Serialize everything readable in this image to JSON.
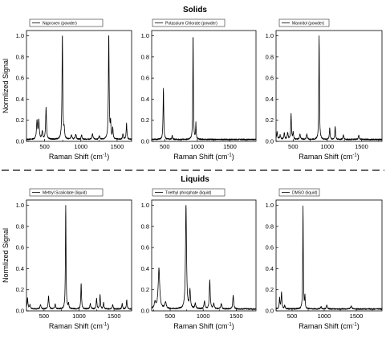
{
  "sections": {
    "solids_title": "Solids",
    "liquids_title": "Liquids"
  },
  "colors": {
    "line": "#000000",
    "divider": "#333333"
  },
  "chart_data": [
    {
      "type": "line",
      "group": "Solids",
      "legend": "Naproxen (powder)",
      "xlabel": "Raman Shift (cm-1)",
      "ylabel": "Normlized Signal",
      "xlim": [
        250,
        1700
      ],
      "ylim": [
        0,
        1.05
      ],
      "xticks": [
        500,
        1000,
        1500
      ],
      "yticks": [
        0.0,
        0.2,
        0.4,
        0.6,
        0.8,
        1.0
      ],
      "peaks": [
        {
          "x": 395,
          "y": 0.17,
          "w": 8
        },
        {
          "x": 420,
          "y": 0.17,
          "w": 8
        },
        {
          "x": 468,
          "y": 0.07,
          "w": 8
        },
        {
          "x": 520,
          "y": 0.3,
          "w": 7
        },
        {
          "x": 745,
          "y": 1.0,
          "w": 6
        },
        {
          "x": 770,
          "y": 0.08,
          "w": 6
        },
        {
          "x": 870,
          "y": 0.04,
          "w": 8
        },
        {
          "x": 930,
          "y": 0.05,
          "w": 8
        },
        {
          "x": 1010,
          "y": 0.04,
          "w": 8
        },
        {
          "x": 1160,
          "y": 0.05,
          "w": 8
        },
        {
          "x": 1255,
          "y": 0.03,
          "w": 8
        },
        {
          "x": 1385,
          "y": 1.0,
          "w": 6
        },
        {
          "x": 1410,
          "y": 0.14,
          "w": 6
        },
        {
          "x": 1440,
          "y": 0.1,
          "w": 6
        },
        {
          "x": 1580,
          "y": 0.05,
          "w": 7
        },
        {
          "x": 1630,
          "y": 0.15,
          "w": 6
        }
      ]
    },
    {
      "type": "line",
      "group": "Solids",
      "legend": "Potassium Chlorate (powder)",
      "xlabel": "Raman Shift (cm-1)",
      "ylabel": "",
      "xlim": [
        300,
        1900
      ],
      "ylim": [
        0,
        1.05
      ],
      "xticks": [
        500,
        1000,
        1500
      ],
      "yticks": [
        0.0,
        0.2,
        0.4,
        0.6,
        0.8,
        1.0
      ],
      "peaks": [
        {
          "x": 480,
          "y": 0.49,
          "w": 6
        },
        {
          "x": 615,
          "y": 0.04,
          "w": 6
        },
        {
          "x": 935,
          "y": 1.0,
          "w": 5
        },
        {
          "x": 978,
          "y": 0.15,
          "w": 5
        }
      ]
    },
    {
      "type": "line",
      "group": "Solids",
      "legend": "Mannitol (powder)",
      "xlabel": "Raman Shift (cm-1)",
      "ylabel": "",
      "xlim": [
        250,
        1800
      ],
      "ylim": [
        0,
        1.05
      ],
      "xticks": [
        500,
        1000,
        1500
      ],
      "yticks": [
        0.0,
        0.2,
        0.4,
        0.6,
        0.8,
        1.0
      ],
      "peaks": [
        {
          "x": 265,
          "y": 0.07,
          "w": 8
        },
        {
          "x": 310,
          "y": 0.04,
          "w": 8
        },
        {
          "x": 370,
          "y": 0.06,
          "w": 8
        },
        {
          "x": 420,
          "y": 0.06,
          "w": 8
        },
        {
          "x": 470,
          "y": 0.24,
          "w": 6
        },
        {
          "x": 500,
          "y": 0.07,
          "w": 6
        },
        {
          "x": 600,
          "y": 0.05,
          "w": 8
        },
        {
          "x": 700,
          "y": 0.05,
          "w": 8
        },
        {
          "x": 880,
          "y": 1.0,
          "w": 5
        },
        {
          "x": 1035,
          "y": 0.11,
          "w": 6
        },
        {
          "x": 1115,
          "y": 0.12,
          "w": 6
        },
        {
          "x": 1235,
          "y": 0.04,
          "w": 8
        },
        {
          "x": 1460,
          "y": 0.04,
          "w": 8
        }
      ]
    },
    {
      "type": "line",
      "group": "Liquids",
      "legend": "Methyl Scalicilate (liquid)",
      "xlabel": "Raman Shift (cm-1)",
      "ylabel": "Normlized Signal",
      "xlim": [
        250,
        1750
      ],
      "ylim": [
        0,
        1.05
      ],
      "xticks": [
        500,
        1000,
        1500
      ],
      "yticks": [
        0.0,
        0.2,
        0.4,
        0.6,
        0.8,
        1.0
      ],
      "peaks": [
        {
          "x": 265,
          "y": 0.1,
          "w": 7
        },
        {
          "x": 300,
          "y": 0.04,
          "w": 8
        },
        {
          "x": 450,
          "y": 0.04,
          "w": 8
        },
        {
          "x": 565,
          "y": 0.12,
          "w": 7
        },
        {
          "x": 660,
          "y": 0.05,
          "w": 7
        },
        {
          "x": 810,
          "y": 1.0,
          "w": 5
        },
        {
          "x": 850,
          "y": 0.05,
          "w": 6
        },
        {
          "x": 1030,
          "y": 0.24,
          "w": 6
        },
        {
          "x": 1160,
          "y": 0.05,
          "w": 7
        },
        {
          "x": 1250,
          "y": 0.1,
          "w": 6
        },
        {
          "x": 1300,
          "y": 0.14,
          "w": 6
        },
        {
          "x": 1350,
          "y": 0.06,
          "w": 6
        },
        {
          "x": 1480,
          "y": 0.04,
          "w": 7
        },
        {
          "x": 1615,
          "y": 0.05,
          "w": 6
        },
        {
          "x": 1680,
          "y": 0.09,
          "w": 6
        }
      ]
    },
    {
      "type": "line",
      "group": "Liquids",
      "legend": "Triethyl phosphate (liquid)",
      "xlabel": "Raman Shift (cm-1)",
      "ylabel": "",
      "xlim": [
        220,
        1800
      ],
      "ylim": [
        0,
        1.05
      ],
      "xticks": [
        500,
        1000,
        1500
      ],
      "yticks": [
        0.0,
        0.2,
        0.4,
        0.6,
        0.8,
        1.0
      ],
      "peaks": [
        {
          "x": 270,
          "y": 0.06,
          "w": 12
        },
        {
          "x": 330,
          "y": 0.38,
          "w": 14
        },
        {
          "x": 430,
          "y": 0.06,
          "w": 14
        },
        {
          "x": 740,
          "y": 1.0,
          "w": 9
        },
        {
          "x": 800,
          "y": 0.17,
          "w": 9
        },
        {
          "x": 880,
          "y": 0.05,
          "w": 9
        },
        {
          "x": 1020,
          "y": 0.07,
          "w": 9
        },
        {
          "x": 1100,
          "y": 0.27,
          "w": 8
        },
        {
          "x": 1160,
          "y": 0.05,
          "w": 9
        },
        {
          "x": 1275,
          "y": 0.05,
          "w": 9
        },
        {
          "x": 1455,
          "y": 0.13,
          "w": 8
        }
      ]
    },
    {
      "type": "line",
      "group": "Liquids",
      "legend": "DMSO (liquid)",
      "xlabel": "Raman Shift (cm-1)",
      "ylabel": "",
      "xlim": [
        250,
        1900
      ],
      "ylim": [
        0,
        1.05
      ],
      "xticks": [
        500,
        1000,
        1500
      ],
      "yticks": [
        0.0,
        0.2,
        0.4,
        0.6,
        0.8,
        1.0
      ],
      "peaks": [
        {
          "x": 305,
          "y": 0.1,
          "w": 7
        },
        {
          "x": 335,
          "y": 0.16,
          "w": 7
        },
        {
          "x": 385,
          "y": 0.03,
          "w": 8
        },
        {
          "x": 670,
          "y": 0.97,
          "w": 5
        },
        {
          "x": 700,
          "y": 0.12,
          "w": 5
        },
        {
          "x": 950,
          "y": 0.02,
          "w": 10
        },
        {
          "x": 1040,
          "y": 0.04,
          "w": 8
        },
        {
          "x": 1420,
          "y": 0.03,
          "w": 10
        }
      ]
    }
  ]
}
